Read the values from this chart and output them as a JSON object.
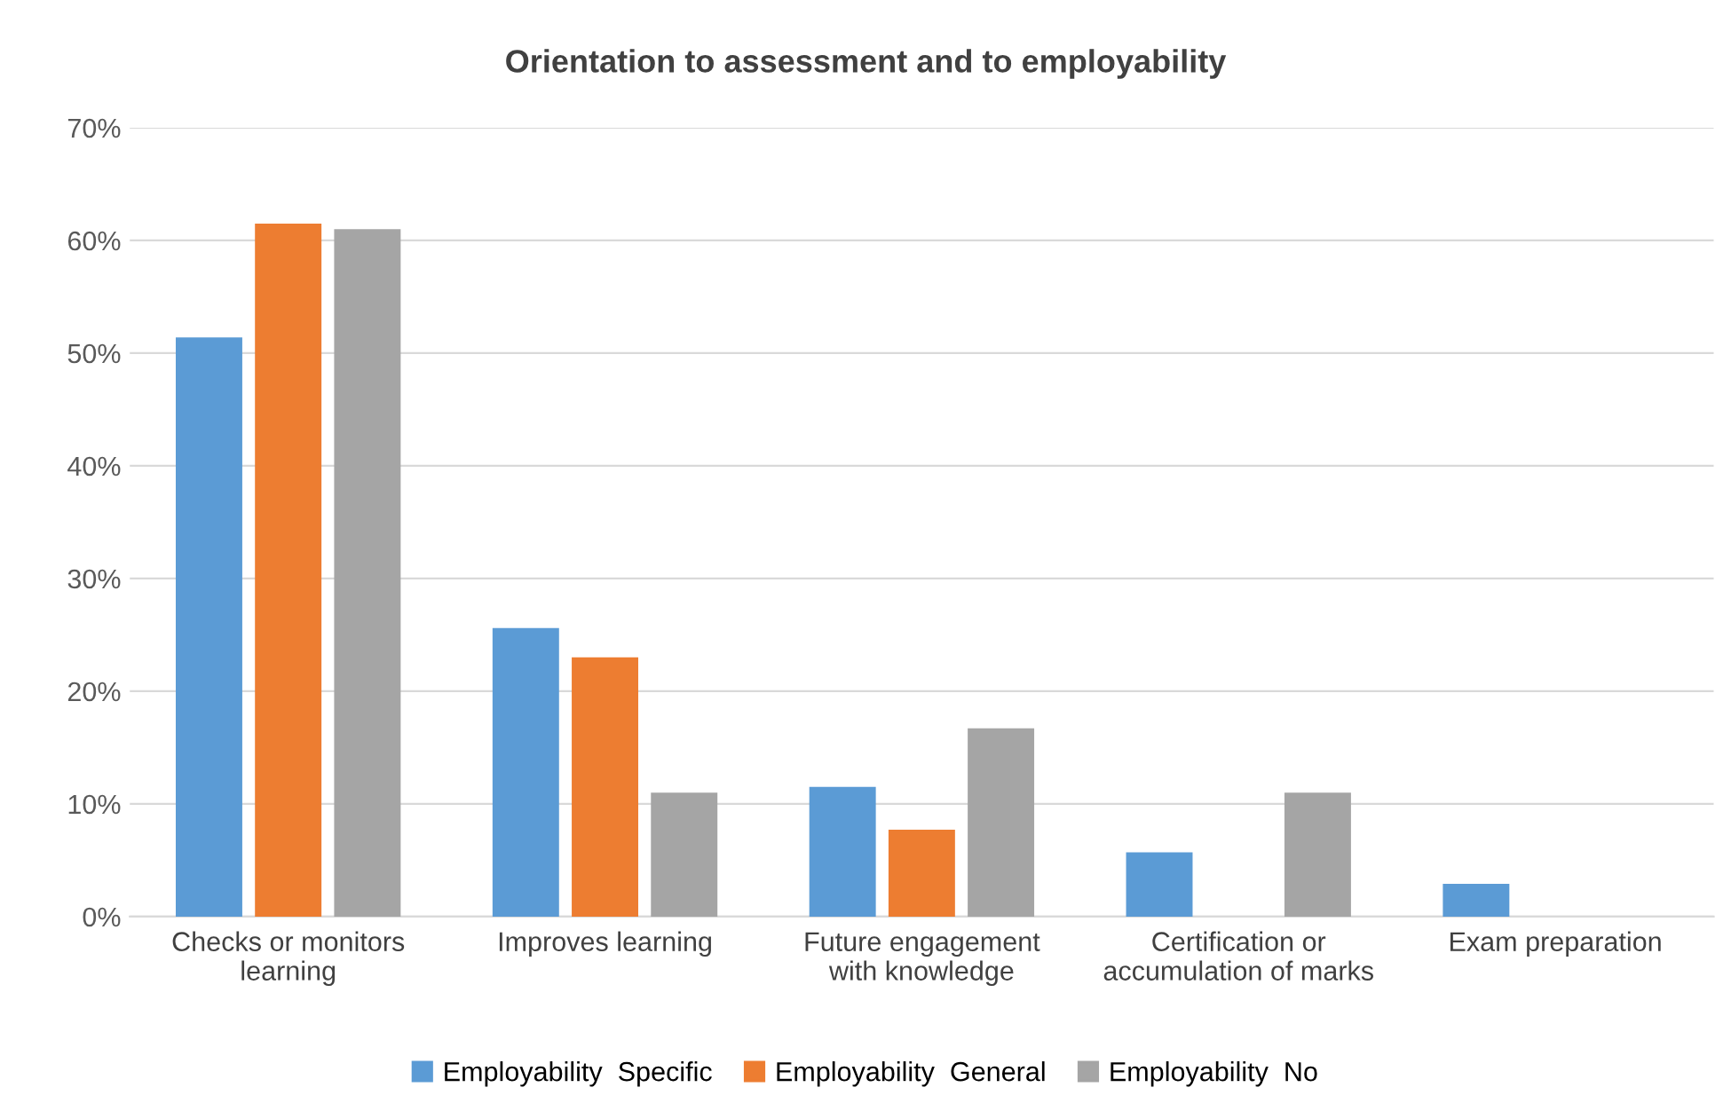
{
  "chart_data": {
    "type": "bar",
    "title": "Orientation to assessment and to employability",
    "categories": [
      "Checks or monitors\nlearning",
      "Improves learning",
      "Future engagement\nwith knowledge",
      "Certification or\naccumulation of marks",
      "Exam preparation"
    ],
    "series": [
      {
        "name": "Employability  Specific",
        "color": "#5b9bd5",
        "values": [
          51.4,
          25.6,
          11.5,
          5.7,
          2.9
        ]
      },
      {
        "name": "Employability  General",
        "color": "#ed7d31",
        "values": [
          61.5,
          23.0,
          7.7,
          0,
          0
        ]
      },
      {
        "name": "Employability  No",
        "color": "#a5a5a5",
        "values": [
          61.0,
          11.0,
          16.7,
          11.0,
          0
        ]
      }
    ],
    "ylim": [
      0,
      70
    ],
    "yticks": [
      {
        "value": 0,
        "label": "0%"
      },
      {
        "value": 10,
        "label": "10%"
      },
      {
        "value": 20,
        "label": "20%"
      },
      {
        "value": 30,
        "label": "30%"
      },
      {
        "value": 40,
        "label": "40%"
      },
      {
        "value": 50,
        "label": "50%"
      },
      {
        "value": 60,
        "label": "60%"
      },
      {
        "value": 70,
        "label": "70%"
      }
    ],
    "grid": "y",
    "legend": "bottom"
  }
}
